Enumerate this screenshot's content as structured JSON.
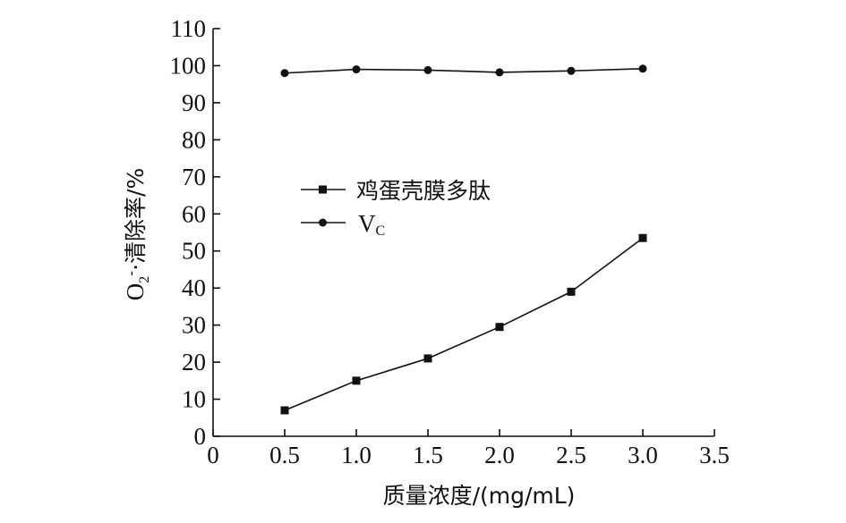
{
  "chart_data": {
    "type": "line",
    "title": "",
    "xlabel": "质量浓度/(mg/mL)",
    "ylabel": "O₂⁻·清除率/%",
    "xlim": [
      0,
      3.5
    ],
    "ylim": [
      0,
      110
    ],
    "x_ticks": [
      "0",
      "0.5",
      "1.0",
      "1.5",
      "2.0",
      "2.5",
      "3.0",
      "3.5"
    ],
    "y_ticks": [
      "0",
      "10",
      "20",
      "30",
      "40",
      "50",
      "60",
      "70",
      "80",
      "90",
      "100",
      "110"
    ],
    "grid": false,
    "legend_position": "center-left",
    "series": [
      {
        "name": "鸡蛋壳膜多肽",
        "marker": "square",
        "color": "#111111",
        "x": [
          0.5,
          1.0,
          1.5,
          2.0,
          2.5,
          3.0
        ],
        "values": [
          7,
          15,
          21,
          29.5,
          39,
          53.5
        ]
      },
      {
        "name": "Vc",
        "marker": "circle",
        "color": "#111111",
        "x": [
          0.5,
          1.0,
          1.5,
          2.0,
          2.5,
          3.0
        ],
        "values": [
          98,
          99,
          98.8,
          98.2,
          98.6,
          99.2
        ]
      }
    ]
  }
}
